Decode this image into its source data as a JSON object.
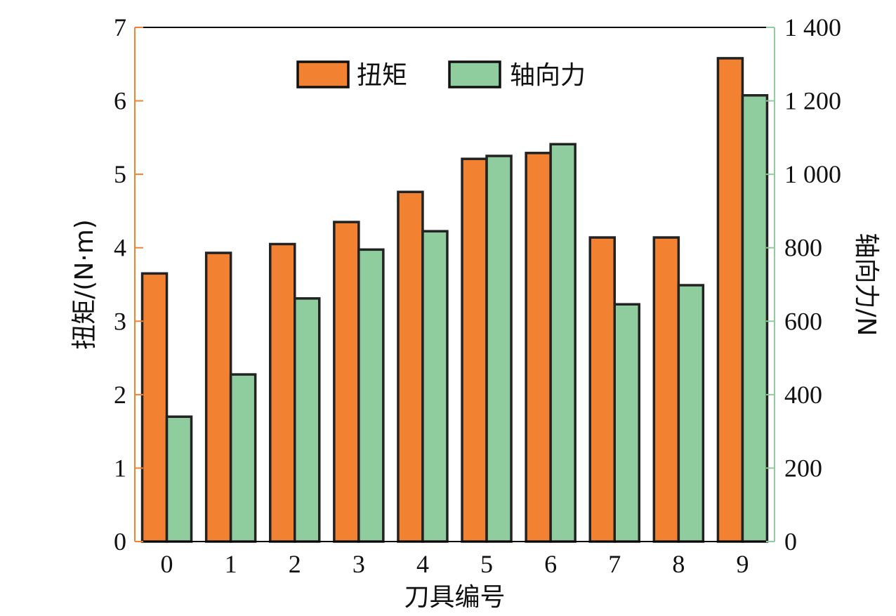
{
  "chart_data": {
    "type": "bar",
    "categories": [
      "0",
      "1",
      "2",
      "3",
      "4",
      "5",
      "6",
      "7",
      "8",
      "9"
    ],
    "xlabel": "刀具编号",
    "ylabel_left": "扭矩/(N·m)",
    "ylabel_right": "轴向力/N",
    "ylim_left": [
      0,
      7
    ],
    "ylim_right": [
      0,
      1400
    ],
    "yticks_left": [
      "0",
      "1",
      "2",
      "3",
      "4",
      "5",
      "6",
      "7"
    ],
    "yticks_right": [
      "0",
      "200",
      "400",
      "600",
      "800",
      "1 000",
      "1 200",
      "1 400"
    ],
    "legend_position": "top-center",
    "grid": false,
    "series": [
      {
        "name": "扭矩",
        "axis": "left",
        "color": "#F28232",
        "values": [
          3.65,
          3.93,
          4.05,
          4.35,
          4.76,
          5.21,
          5.29,
          4.14,
          4.14,
          6.58
        ]
      },
      {
        "name": "轴向力",
        "axis": "right",
        "color": "#90CD9E",
        "values": [
          340,
          455,
          662,
          795,
          845,
          1050,
          1082,
          646,
          698,
          1215
        ]
      }
    ],
    "axis_colors": {
      "left": "#F28232",
      "right": "#90CD9E",
      "frame": "#000000"
    }
  }
}
